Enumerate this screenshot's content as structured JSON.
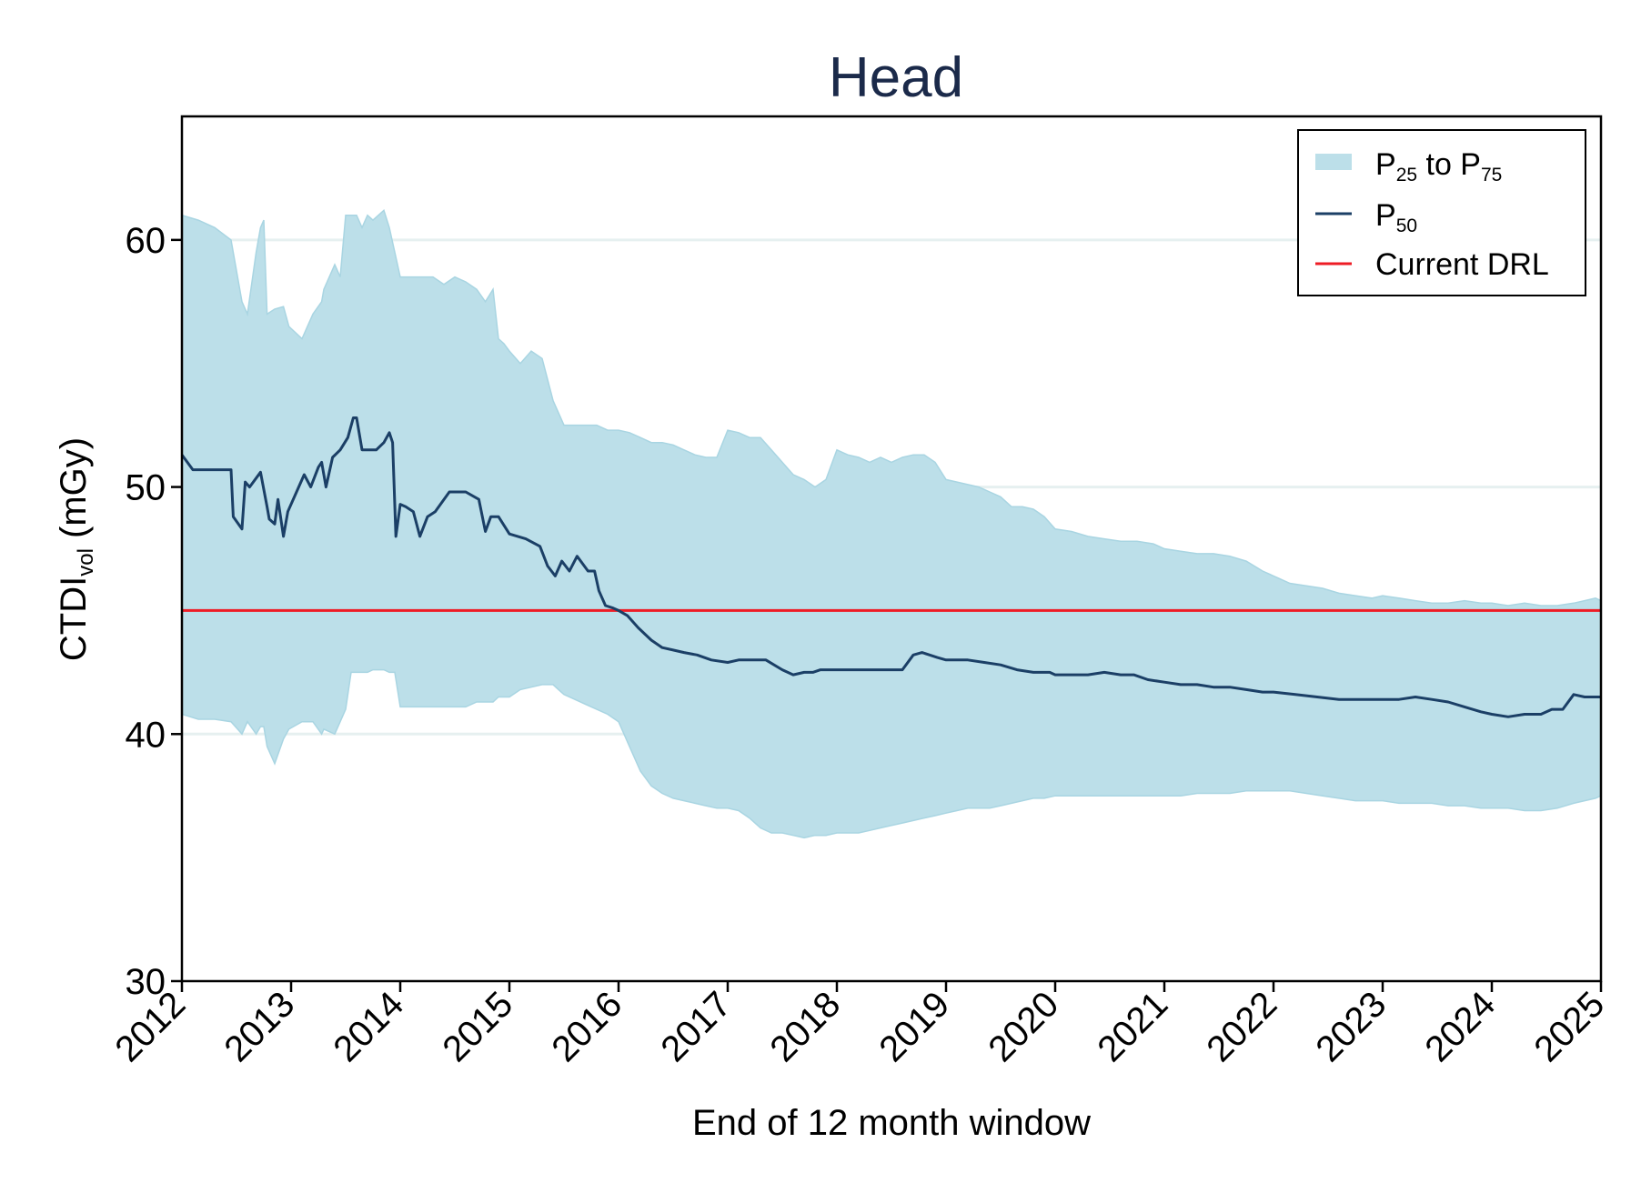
{
  "chart_data": {
    "type": "area",
    "title": "Head",
    "xlabel": "End of 12 month window",
    "ylabel": {
      "main": "CTDI",
      "subscript": "vol",
      "suffix": " (mGy)"
    },
    "xlim": [
      2012,
      2025
    ],
    "ylim": [
      30,
      65
    ],
    "x_ticks": [
      "2012",
      "2013",
      "2014",
      "2015",
      "2016",
      "2017",
      "2018",
      "2019",
      "2020",
      "2021",
      "2022",
      "2023",
      "2024",
      "2025"
    ],
    "y_ticks": [
      "30",
      "40",
      "50",
      "60"
    ],
    "grid": "horizontal",
    "legend_position": "top-right",
    "colors": {
      "band": "#bcdfe9",
      "median": "#1b3f66",
      "drl": "#ee1c25",
      "title": "#1b2a4a",
      "grid": "#e6f0f0"
    },
    "legend": [
      {
        "key": "band",
        "label_main": "P",
        "label_sub": "25",
        "label_mid": " to P",
        "label_sub2": "75"
      },
      {
        "key": "median",
        "label_main": "P",
        "label_sub": "50"
      },
      {
        "key": "drl",
        "label_main": "Current DRL"
      }
    ],
    "drl": 45,
    "series": [
      {
        "name": "P50",
        "x": [
          2012.0,
          2012.1,
          2012.15,
          2012.45,
          2012.47,
          2012.55,
          2012.58,
          2012.62,
          2012.72,
          2012.78,
          2012.8,
          2012.85,
          2012.88,
          2012.93,
          2012.97,
          2013.05,
          2013.12,
          2013.18,
          2013.25,
          2013.28,
          2013.32,
          2013.38,
          2013.45,
          2013.52,
          2013.57,
          2013.6,
          2013.65,
          2013.7,
          2013.78,
          2013.85,
          2013.9,
          2013.93,
          2013.96,
          2014.0,
          2014.05,
          2014.12,
          2014.18,
          2014.25,
          2014.32,
          2014.45,
          2014.6,
          2014.72,
          2014.78,
          2014.83,
          2014.9,
          2015.0,
          2015.15,
          2015.28,
          2015.35,
          2015.42,
          2015.48,
          2015.55,
          2015.62,
          2015.72,
          2015.78,
          2015.82,
          2015.88,
          2015.95,
          2016.0,
          2016.08,
          2016.18,
          2016.3,
          2016.4,
          2016.5,
          2016.6,
          2016.72,
          2016.85,
          2017.0,
          2017.1,
          2017.2,
          2017.35,
          2017.5,
          2017.6,
          2017.7,
          2017.78,
          2017.85,
          2017.95,
          2018.05,
          2018.15,
          2018.3,
          2018.45,
          2018.6,
          2018.7,
          2018.78,
          2018.85,
          2018.92,
          2019.0,
          2019.1,
          2019.2,
          2019.35,
          2019.5,
          2019.65,
          2019.8,
          2019.95,
          2020.0,
          2020.15,
          2020.3,
          2020.45,
          2020.6,
          2020.72,
          2020.85,
          2021.0,
          2021.15,
          2021.3,
          2021.45,
          2021.6,
          2021.75,
          2021.9,
          2022.0,
          2022.2,
          2022.4,
          2022.6,
          2022.8,
          2022.9,
          2023.0,
          2023.15,
          2023.3,
          2023.45,
          2023.6,
          2023.75,
          2023.9,
          2024.0,
          2024.15,
          2024.3,
          2024.45,
          2024.55,
          2024.65,
          2024.75,
          2024.85,
          2024.95,
          2025.0
        ],
        "values": [
          51.3,
          50.7,
          50.7,
          50.7,
          48.8,
          48.3,
          50.2,
          50.0,
          50.6,
          49.2,
          48.7,
          48.5,
          49.5,
          48.0,
          49.0,
          49.8,
          50.5,
          50.0,
          50.8,
          51.0,
          50.0,
          51.2,
          51.5,
          52.0,
          52.8,
          52.8,
          51.5,
          51.5,
          51.5,
          51.8,
          52.2,
          51.8,
          48.0,
          49.3,
          49.2,
          49.0,
          48.0,
          48.8,
          49.0,
          49.8,
          49.8,
          49.5,
          48.2,
          48.8,
          48.8,
          48.1,
          47.9,
          47.6,
          46.8,
          46.4,
          47.0,
          46.6,
          47.2,
          46.6,
          46.6,
          45.8,
          45.2,
          45.1,
          45.0,
          44.8,
          44.3,
          43.8,
          43.5,
          43.4,
          43.3,
          43.2,
          43.0,
          42.9,
          43.0,
          43.0,
          43.0,
          42.6,
          42.4,
          42.5,
          42.5,
          42.6,
          42.6,
          42.6,
          42.6,
          42.6,
          42.6,
          42.6,
          43.2,
          43.3,
          43.2,
          43.1,
          43.0,
          43.0,
          43.0,
          42.9,
          42.8,
          42.6,
          42.5,
          42.5,
          42.4,
          42.4,
          42.4,
          42.5,
          42.4,
          42.4,
          42.2,
          42.1,
          42.0,
          42.0,
          41.9,
          41.9,
          41.8,
          41.7,
          41.7,
          41.6,
          41.5,
          41.4,
          41.4,
          41.4,
          41.4,
          41.4,
          41.5,
          41.4,
          41.3,
          41.1,
          40.9,
          40.8,
          40.7,
          40.8,
          40.8,
          41.0,
          41.0,
          41.6,
          41.5,
          41.5,
          41.5
        ]
      },
      {
        "name": "P25 to P75",
        "x": [
          2012.0,
          2012.15,
          2012.3,
          2012.45,
          2012.55,
          2012.6,
          2012.68,
          2012.72,
          2012.75,
          2012.78,
          2012.85,
          2012.93,
          2012.98,
          2013.1,
          2013.2,
          2013.28,
          2013.3,
          2013.4,
          2013.45,
          2013.5,
          2013.55,
          2013.6,
          2013.65,
          2013.7,
          2013.75,
          2013.8,
          2013.85,
          2013.9,
          2013.95,
          2014.0,
          2014.1,
          2014.2,
          2014.3,
          2014.4,
          2014.5,
          2014.6,
          2014.7,
          2014.78,
          2014.85,
          2014.9,
          2014.95,
          2015.0,
          2015.1,
          2015.2,
          2015.3,
          2015.4,
          2015.45,
          2015.5,
          2015.6,
          2015.7,
          2015.8,
          2015.9,
          2016.0,
          2016.1,
          2016.2,
          2016.3,
          2016.4,
          2016.5,
          2016.6,
          2016.7,
          2016.8,
          2016.9,
          2017.0,
          2017.1,
          2017.2,
          2017.3,
          2017.4,
          2017.5,
          2017.6,
          2017.7,
          2017.8,
          2017.9,
          2018.0,
          2018.1,
          2018.2,
          2018.3,
          2018.4,
          2018.5,
          2018.6,
          2018.7,
          2018.8,
          2018.9,
          2019.0,
          2019.1,
          2019.2,
          2019.3,
          2019.4,
          2019.5,
          2019.6,
          2019.7,
          2019.8,
          2019.9,
          2020.0,
          2020.15,
          2020.3,
          2020.45,
          2020.6,
          2020.75,
          2020.9,
          2021.0,
          2021.15,
          2021.3,
          2021.45,
          2021.6,
          2021.75,
          2021.9,
          2022.0,
          2022.15,
          2022.3,
          2022.45,
          2022.6,
          2022.75,
          2022.9,
          2023.0,
          2023.15,
          2023.3,
          2023.45,
          2023.6,
          2023.75,
          2023.9,
          2024.0,
          2024.15,
          2024.3,
          2024.45,
          2024.6,
          2024.75,
          2024.85,
          2024.95,
          2025.0
        ],
        "upper": [
          61.0,
          60.8,
          60.5,
          60.0,
          57.5,
          57.0,
          59.5,
          60.5,
          60.8,
          57.0,
          57.2,
          57.3,
          56.5,
          56.0,
          57.0,
          57.5,
          58.0,
          59.0,
          58.5,
          61.0,
          61.0,
          61.0,
          60.5,
          61.0,
          60.8,
          61.0,
          61.2,
          60.5,
          59.5,
          58.5,
          58.5,
          58.5,
          58.5,
          58.2,
          58.5,
          58.3,
          58.0,
          57.5,
          58.0,
          56.0,
          55.8,
          55.5,
          55.0,
          55.5,
          55.2,
          53.5,
          53.0,
          52.5,
          52.5,
          52.5,
          52.5,
          52.3,
          52.3,
          52.2,
          52.0,
          51.8,
          51.8,
          51.7,
          51.5,
          51.3,
          51.2,
          51.2,
          52.3,
          52.2,
          52.0,
          52.0,
          51.5,
          51.0,
          50.5,
          50.3,
          50.0,
          50.3,
          51.5,
          51.3,
          51.2,
          51.0,
          51.2,
          51.0,
          51.2,
          51.3,
          51.3,
          51.0,
          50.3,
          50.2,
          50.1,
          50.0,
          49.8,
          49.6,
          49.2,
          49.2,
          49.1,
          48.8,
          48.3,
          48.2,
          48.0,
          47.9,
          47.8,
          47.8,
          47.7,
          47.5,
          47.4,
          47.3,
          47.3,
          47.2,
          47.0,
          46.6,
          46.4,
          46.1,
          46.0,
          45.9,
          45.7,
          45.6,
          45.5,
          45.6,
          45.5,
          45.4,
          45.3,
          45.3,
          45.4,
          45.3,
          45.3,
          45.2,
          45.3,
          45.2,
          45.2,
          45.3,
          45.4,
          45.5,
          45.4
        ],
        "lower": [
          40.8,
          40.6,
          40.6,
          40.5,
          40.0,
          40.5,
          40.0,
          40.3,
          40.3,
          39.5,
          38.8,
          39.8,
          40.2,
          40.5,
          40.5,
          40.0,
          40.2,
          40.0,
          40.5,
          41.0,
          42.5,
          42.5,
          42.5,
          42.5,
          42.6,
          42.6,
          42.6,
          42.5,
          42.5,
          41.1,
          41.1,
          41.1,
          41.1,
          41.1,
          41.1,
          41.1,
          41.3,
          41.3,
          41.3,
          41.5,
          41.5,
          41.5,
          41.8,
          41.9,
          42.0,
          42.0,
          41.8,
          41.6,
          41.4,
          41.2,
          41.0,
          40.8,
          40.5,
          39.5,
          38.5,
          37.9,
          37.6,
          37.4,
          37.3,
          37.2,
          37.1,
          37.0,
          37.0,
          36.9,
          36.6,
          36.2,
          36.0,
          36.0,
          35.9,
          35.8,
          35.9,
          35.9,
          36.0,
          36.0,
          36.0,
          36.1,
          36.2,
          36.3,
          36.4,
          36.5,
          36.6,
          36.7,
          36.8,
          36.9,
          37.0,
          37.0,
          37.0,
          37.1,
          37.2,
          37.3,
          37.4,
          37.4,
          37.5,
          37.5,
          37.5,
          37.5,
          37.5,
          37.5,
          37.5,
          37.5,
          37.5,
          37.6,
          37.6,
          37.6,
          37.7,
          37.7,
          37.7,
          37.7,
          37.6,
          37.5,
          37.4,
          37.3,
          37.3,
          37.3,
          37.2,
          37.2,
          37.2,
          37.1,
          37.1,
          37.0,
          37.0,
          37.0,
          36.9,
          36.9,
          37.0,
          37.2,
          37.3,
          37.4,
          37.5
        ]
      }
    ]
  }
}
